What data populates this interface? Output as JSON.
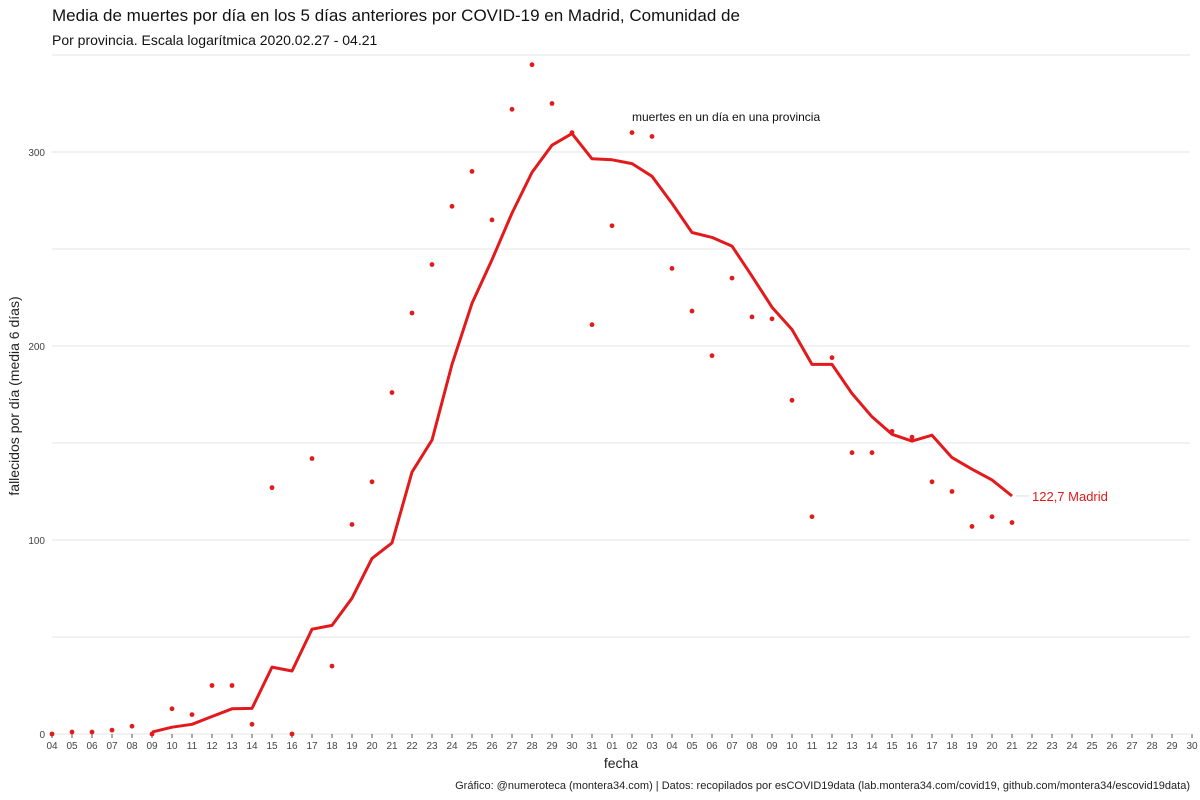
{
  "chart_data": {
    "type": "line",
    "title": "Media de muertes por día en los 5 días anteriores por COVID-19 en Madrid, Comunidad de",
    "subtitle": "Por provincia. Escala logarítmica  2020.02.27 - 04.21",
    "xlabel": "fecha",
    "ylabel": "fallecidos por día (media 6 días)",
    "caption": "Gráfico: @numeroteca (montera34.com) | Datos: recopilados por esCOVID19data (lab.montera34.com/covid19, github.com/montera34/escovid19data)",
    "annotation": "muertes en un día en una provincia",
    "end_label": "122,7 Madrid",
    "color": "#e31a1c",
    "ylim": [
      0,
      350
    ],
    "y_ticks": [
      0,
      100,
      200,
      300
    ],
    "y_tick_labels": [
      "0",
      "100",
      "200",
      "300"
    ],
    "x_tick_labels": [
      "04",
      "05",
      "06",
      "07",
      "08",
      "09",
      "10",
      "11",
      "12",
      "13",
      "14",
      "15",
      "16",
      "17",
      "18",
      "19",
      "20",
      "21",
      "22",
      "23",
      "24",
      "25",
      "26",
      "27",
      "28",
      "29",
      "30",
      "31",
      "01",
      "02",
      "03",
      "04",
      "05",
      "06",
      "07",
      "08",
      "09",
      "10",
      "11",
      "12",
      "13",
      "14",
      "15",
      "16",
      "17",
      "18",
      "19",
      "20",
      "21",
      "22",
      "23",
      "24",
      "25",
      "26",
      "27",
      "28",
      "29",
      "30"
    ],
    "series": [
      {
        "name": "media 6 días",
        "start_index": 5,
        "values": [
          1,
          3.5,
          5,
          9,
          13,
          13.2,
          34.5,
          32.5,
          54,
          56,
          70,
          90.5,
          98.5,
          135,
          151.5,
          190.5,
          222,
          244.5,
          268.5,
          289.5,
          303.5,
          309.5,
          296.5,
          296,
          294,
          287.5,
          273.5,
          258.5,
          256,
          251.5,
          236,
          220,
          208.5,
          190.5,
          190.5,
          175.5,
          163.5,
          154.5,
          151,
          154,
          142.5,
          136.5,
          131,
          122.7
        ]
      },
      {
        "name": "muertes en un día",
        "start_index": 0,
        "values": [
          0,
          1,
          1,
          2,
          4,
          0,
          13,
          10,
          25,
          25,
          5,
          127,
          0,
          142,
          35,
          108,
          130,
          176,
          217,
          242,
          272,
          290,
          265,
          322,
          345,
          325,
          310,
          211,
          262,
          310,
          308,
          240,
          218,
          195,
          235,
          215,
          214,
          172,
          112,
          194,
          145,
          145,
          156,
          153,
          130,
          125,
          107,
          112,
          109
        ]
      }
    ]
  }
}
